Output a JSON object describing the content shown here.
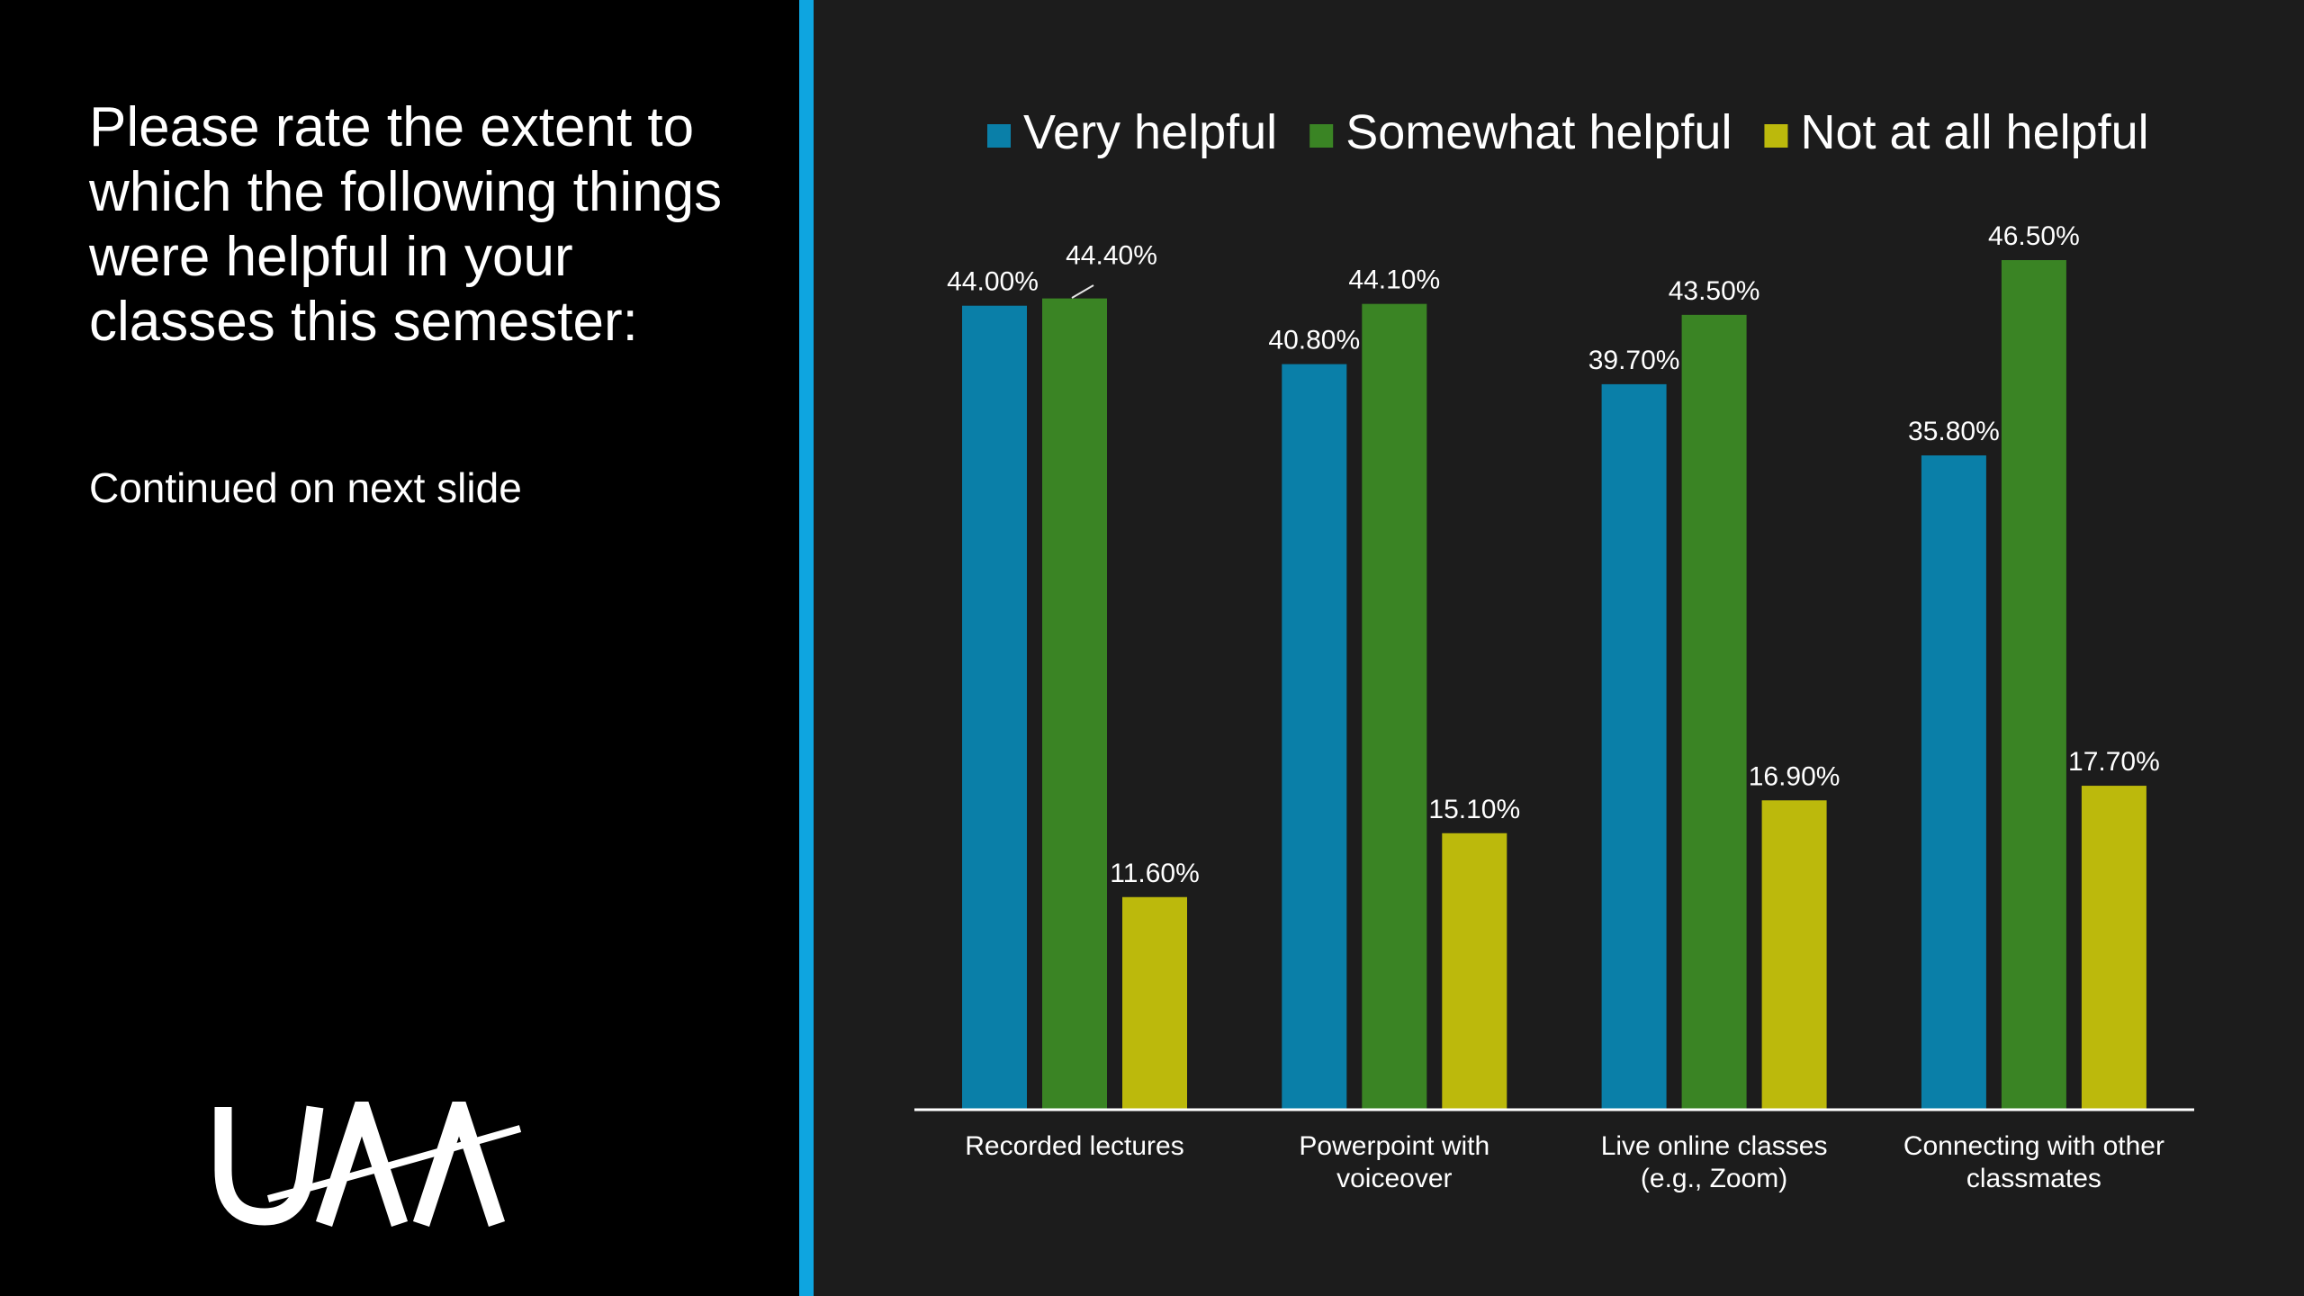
{
  "slide": {
    "question": "Please rate the extent to which the following things were helpful in your classes this semester:",
    "note": "Continued on next slide",
    "logo_text": "UAA"
  },
  "colors": {
    "left_background": "#000000",
    "right_background": "#1c1c1c",
    "divider": "#0ea5e0",
    "text": "#ffffff"
  },
  "chart_data": {
    "type": "bar",
    "categories": [
      [
        "Recorded lectures"
      ],
      [
        "Powerpoint with",
        "voiceover"
      ],
      [
        "Live online classes",
        "(e.g., Zoom)"
      ],
      [
        "Connecting with other",
        "classmates"
      ]
    ],
    "series": [
      {
        "name": "Very helpful",
        "color": "#0a7fa8",
        "values": [
          44.0,
          40.8,
          39.7,
          35.8
        ],
        "labels": [
          "44.00%",
          "40.80%",
          "39.70%",
          "35.80%"
        ]
      },
      {
        "name": "Somewhat helpful",
        "color": "#3a8424",
        "values": [
          44.4,
          44.1,
          43.5,
          46.5
        ],
        "labels": [
          "44.40%",
          "44.10%",
          "43.50%",
          "46.50%"
        ]
      },
      {
        "name": "Not at all helpful",
        "color": "#bcb90c",
        "values": [
          11.6,
          15.1,
          16.9,
          17.7
        ],
        "labels": [
          "11.60%",
          "15.10%",
          "16.90%",
          "17.70%"
        ]
      }
    ],
    "legend": "top-center",
    "grid": false,
    "ylim": [
      0,
      46.5
    ]
  }
}
